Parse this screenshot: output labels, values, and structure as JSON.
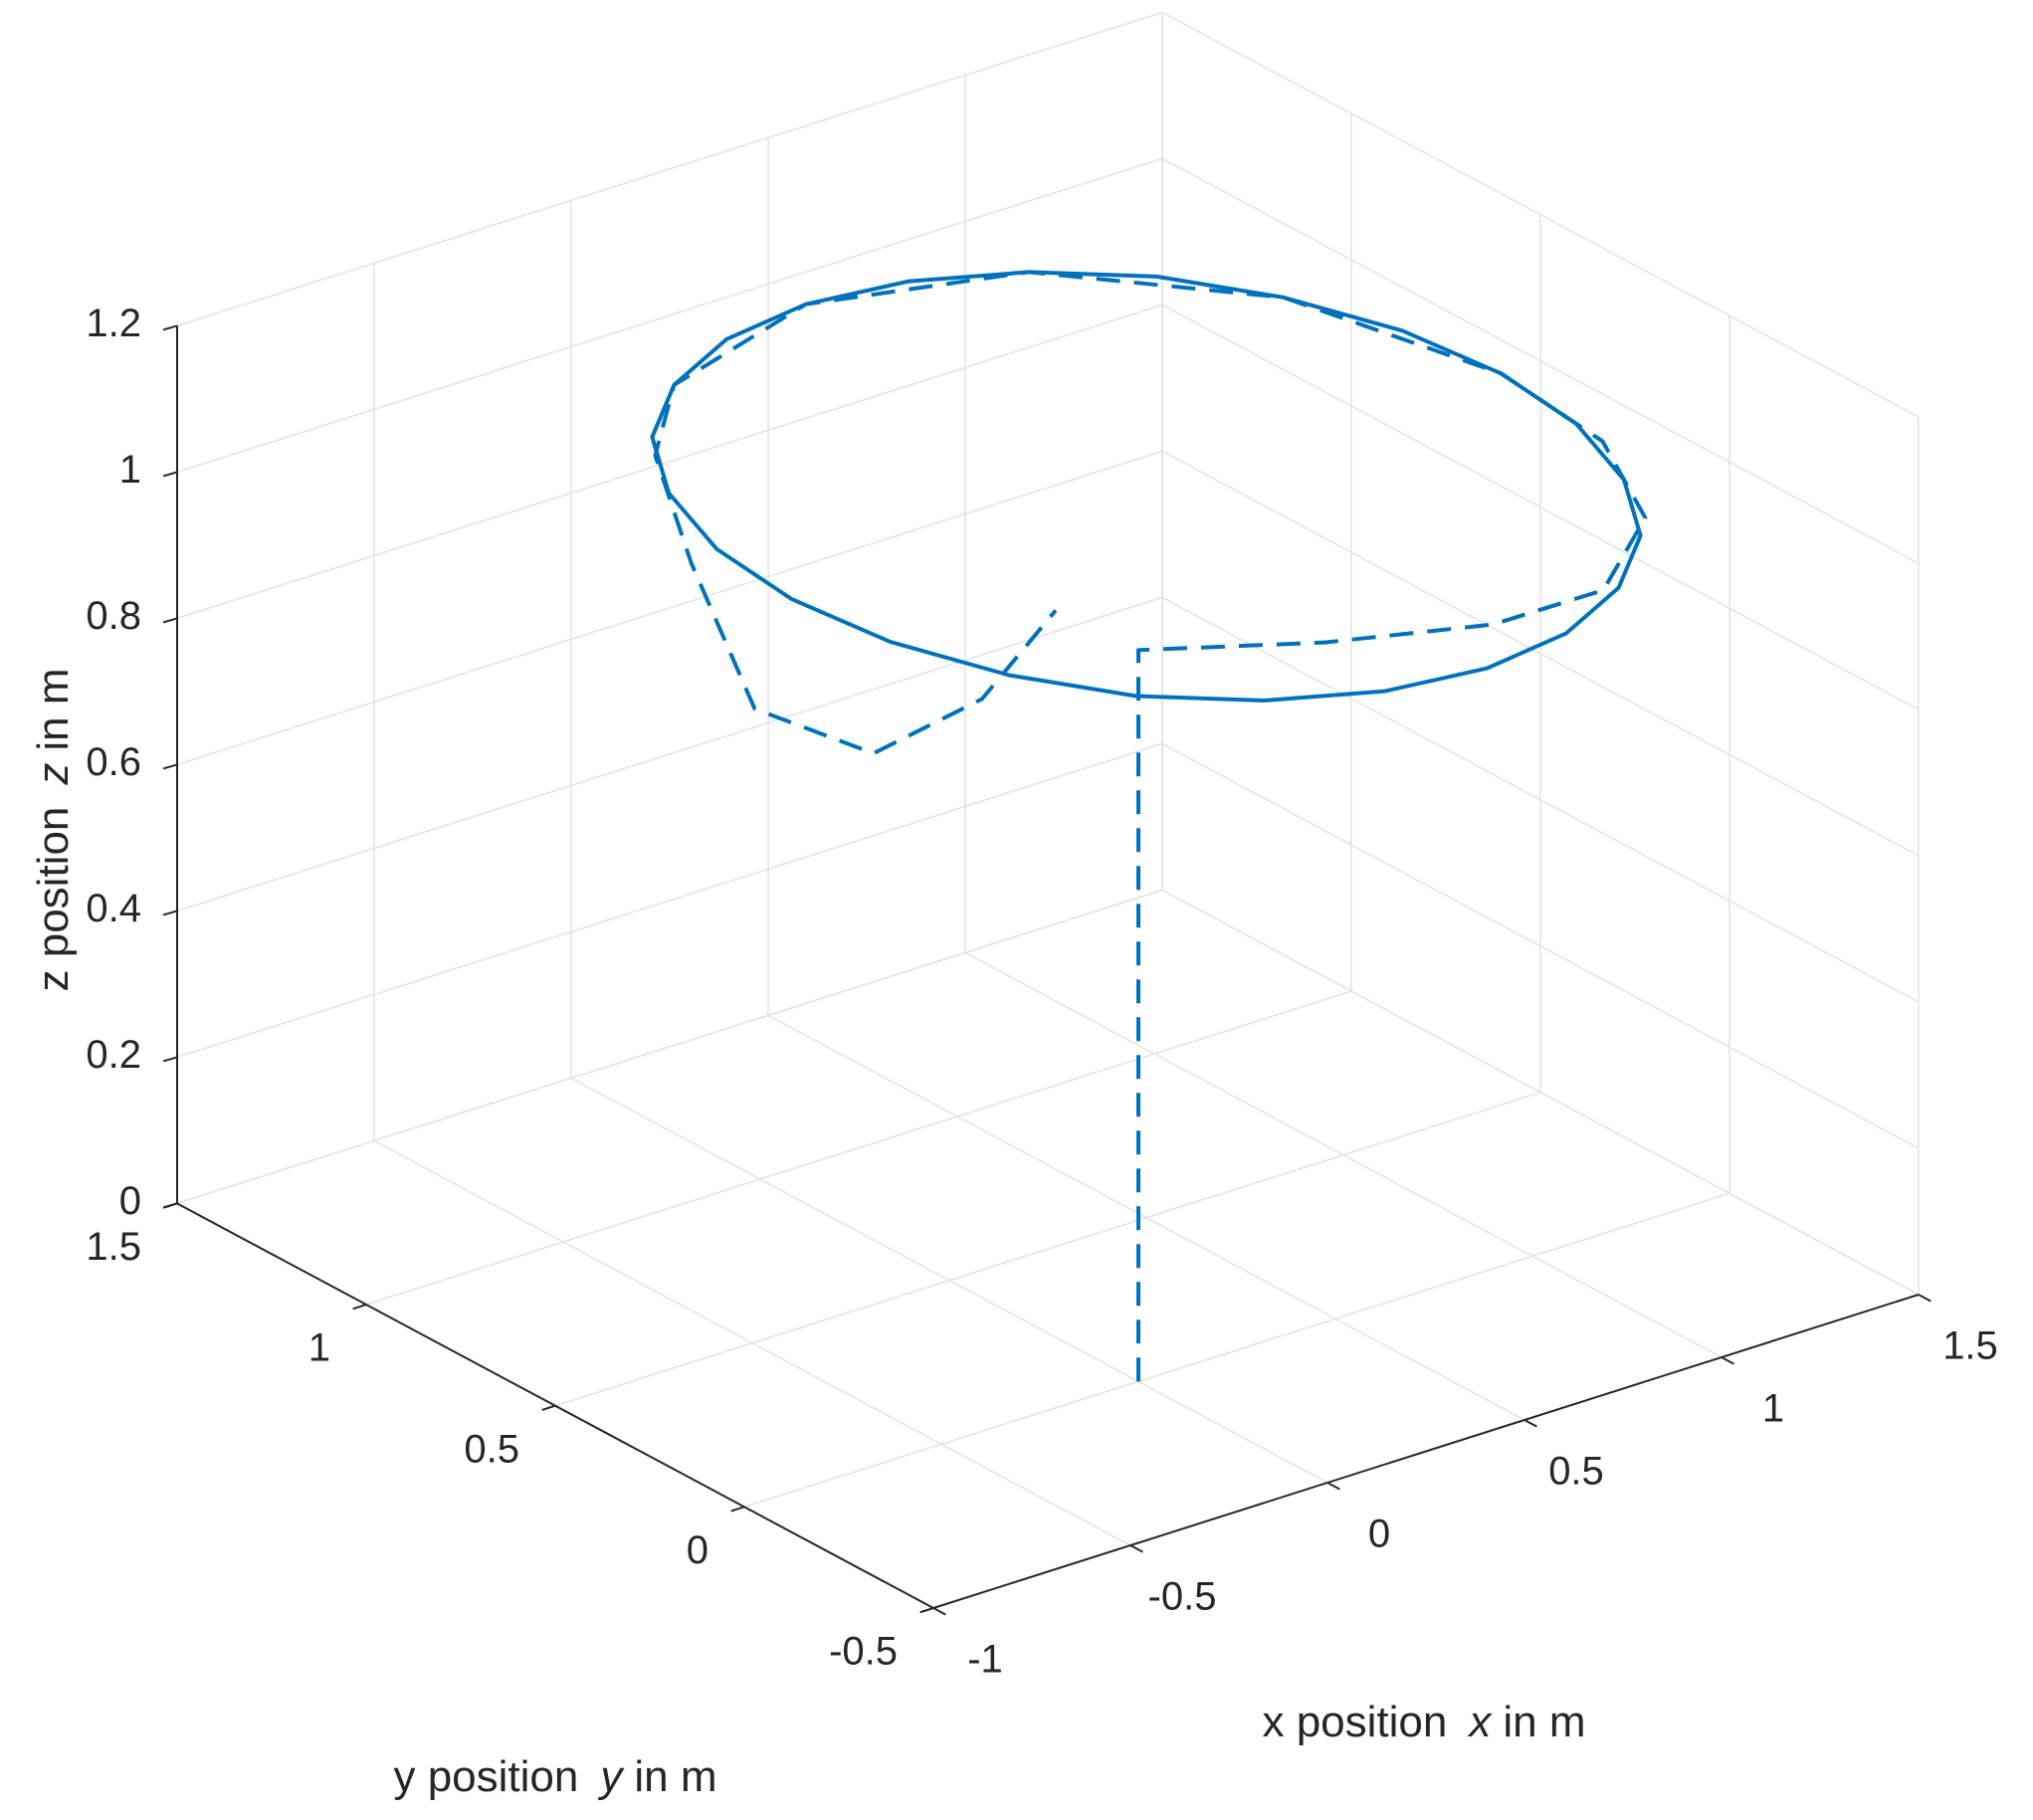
{
  "chart_data": {
    "type": "line3d",
    "xlabel": {
      "text": "x position",
      "var": "x",
      "unit": "in m"
    },
    "ylabel": {
      "text": "y position",
      "var": "y",
      "unit": "in m"
    },
    "zlabel": {
      "text": "z position",
      "var": "z",
      "unit": "in m"
    },
    "xlim": [
      -1,
      1.5
    ],
    "xticks": [
      -1,
      -0.5,
      0,
      0.5,
      1,
      1.5
    ],
    "ylim": [
      -0.5,
      1.5
    ],
    "yticks": [
      -0.5,
      0,
      0.5,
      1,
      1.5
    ],
    "zlim": [
      0,
      1.2
    ],
    "zticks": [
      0,
      0.2,
      0.4,
      0.6,
      0.8,
      1,
      1.2
    ],
    "grid": true,
    "series": [
      {
        "color": "#0072bd",
        "style": "solid",
        "x": [
          1.4,
          1.37,
          1.28,
          1.14,
          0.95,
          0.73,
          0.5,
          0.27,
          0.05,
          -0.14,
          -0.28,
          -0.37,
          -0.4,
          -0.37,
          -0.28,
          -0.14,
          0.05,
          0.27,
          0.5,
          0.73,
          0.95,
          1.14,
          1.28,
          1.37,
          1.4
        ],
        "y": [
          0.5,
          0.73,
          0.95,
          1.14,
          1.28,
          1.37,
          1.4,
          1.37,
          1.28,
          1.14,
          0.95,
          0.73,
          0.5,
          0.27,
          0.05,
          -0.14,
          -0.28,
          -0.37,
          -0.4,
          -0.37,
          -0.28,
          -0.14,
          0.05,
          0.27,
          0.5
        ],
        "z": [
          1,
          1,
          1,
          1,
          1,
          1,
          1,
          1,
          1,
          1,
          1,
          1,
          1,
          1,
          1,
          1,
          1,
          1,
          1,
          1,
          1,
          1,
          1,
          1,
          1
        ]
      },
      {
        "color": "#0072bd",
        "style": "dashed",
        "x": [
          0,
          0,
          0.32,
          0.64,
          0.94,
          1.2,
          1.36,
          1.4,
          1.28,
          0.95,
          0.5,
          0.05,
          -0.19,
          -0.3,
          -0.35,
          -0.25,
          -0.09,
          0.03
        ],
        "y": [
          0,
          0,
          -0.16,
          -0.27,
          -0.25,
          -0.09,
          0.19,
          0.5,
          0.95,
          1.28,
          1.4,
          1.28,
          1.08,
          0.87,
          0.65,
          0.44,
          0.32,
          0.25
        ],
        "z": [
          0,
          1,
          1,
          1,
          0.99,
          1,
          1,
          1,
          1,
          1,
          1,
          1,
          1,
          0.93,
          0.8,
          0.78,
          0.86,
          0.98
        ]
      }
    ]
  }
}
